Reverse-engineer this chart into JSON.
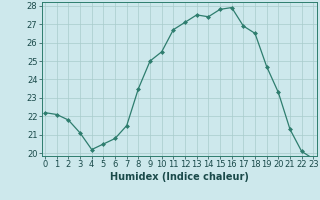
{
  "x": [
    0,
    1,
    2,
    3,
    4,
    5,
    6,
    7,
    8,
    9,
    10,
    11,
    12,
    13,
    14,
    15,
    16,
    17,
    18,
    19,
    20,
    21,
    22,
    23
  ],
  "y": [
    22.2,
    22.1,
    21.8,
    21.1,
    20.2,
    20.5,
    20.8,
    21.5,
    23.5,
    25.0,
    25.5,
    26.7,
    27.1,
    27.5,
    27.4,
    27.8,
    27.9,
    26.9,
    26.5,
    24.7,
    23.3,
    21.3,
    20.1,
    19.7
  ],
  "xlabel": "Humidex (Indice chaleur)",
  "ylim": [
    20,
    28
  ],
  "xlim": [
    -0.3,
    23.3
  ],
  "yticks": [
    20,
    21,
    22,
    23,
    24,
    25,
    26,
    27,
    28
  ],
  "xticks": [
    0,
    1,
    2,
    3,
    4,
    5,
    6,
    7,
    8,
    9,
    10,
    11,
    12,
    13,
    14,
    15,
    16,
    17,
    18,
    19,
    20,
    21,
    22,
    23
  ],
  "line_color": "#2e7d6e",
  "marker_color": "#2e7d6e",
  "bg_color": "#cde8ec",
  "grid_color": "#a8cccc",
  "axis_fontsize": 7,
  "tick_fontsize": 6
}
